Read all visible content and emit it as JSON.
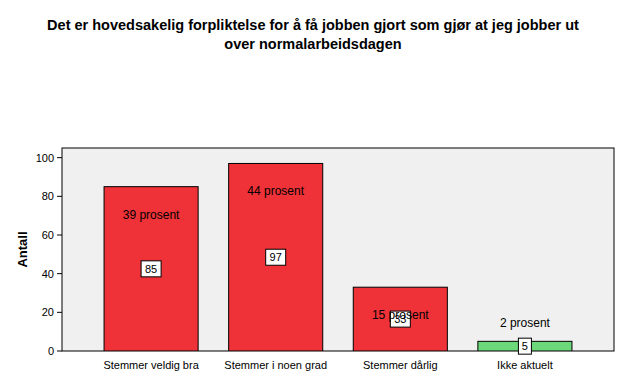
{
  "chart_data": {
    "type": "bar",
    "title": "Det er hovedsakelig forpliktelse for å få jobben gjort som gjør at jeg jobber ut over normalarbeidsdagen",
    "y_label": "Antall",
    "categories": [
      "Stemmer veldig bra",
      "Stemmer i noen grad",
      "Stemmer dårlig",
      "Ikke aktuelt"
    ],
    "values": [
      85,
      97,
      33,
      5
    ],
    "colors": [
      "#ee3238",
      "#ee3238",
      "#ee3238",
      "#6cd87a"
    ],
    "annotations": [
      "39 prosent",
      "44 prosent",
      "15 prosent",
      "2 prosent"
    ],
    "data_labels": true,
    "grid": false,
    "ylim": [
      0,
      105
    ],
    "yticks": [
      0,
      20,
      40,
      60,
      80,
      100
    ]
  }
}
